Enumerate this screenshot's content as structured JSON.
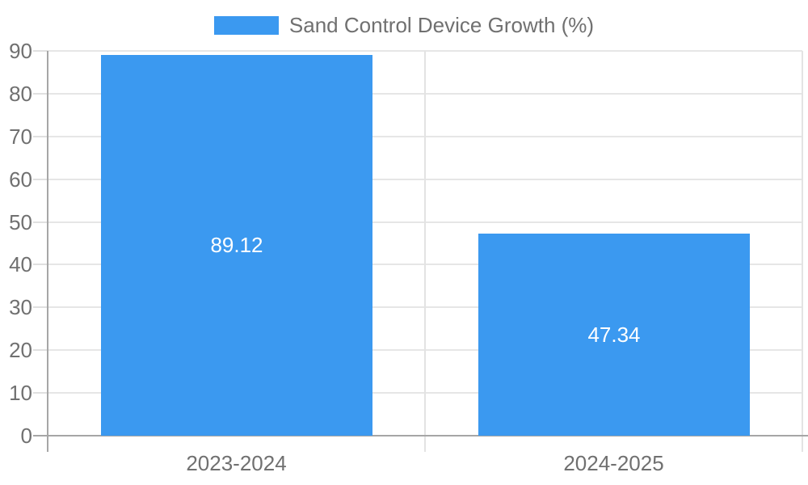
{
  "chart_data": {
    "type": "bar",
    "legend": "Sand Control Device Growth (%)",
    "legend_position": "top-center",
    "categories": [
      "2023-2024",
      "2024-2025"
    ],
    "values": [
      89.12,
      47.34
    ],
    "value_labels": [
      "89.12",
      "47.34"
    ],
    "yticks": [
      0,
      10,
      20,
      30,
      40,
      50,
      60,
      70,
      80,
      90
    ],
    "ylim": [
      0,
      90
    ],
    "grid": true,
    "colors": {
      "bar": "#3B99F0",
      "value_label": "#FFFFFF",
      "axis_label": "#707070",
      "legend_label": "#707070",
      "gridline": "#E6E6E6",
      "category_divider": "#E3E3E3",
      "tick": "#E0E0E0",
      "axis_line": "#A6A6A6",
      "background": "#FFFFFF"
    }
  }
}
